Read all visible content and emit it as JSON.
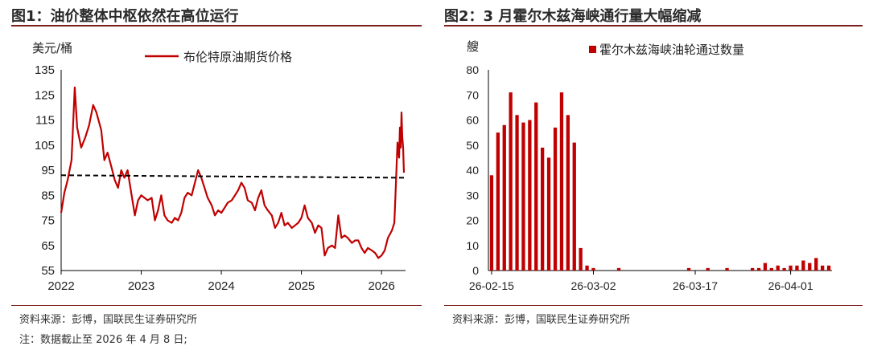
{
  "figure1": {
    "title": "图1：油价整体中枢依然在高位运行",
    "source": "资料来源：彭博，国联民生证券研究所",
    "note": "注：数据截止至 2026 年 4 月 8 日;",
    "chart_data": {
      "type": "line",
      "ylabel": "美元/桶",
      "ylim": [
        55,
        135
      ],
      "yticks": [
        55,
        65,
        75,
        85,
        95,
        105,
        115,
        125,
        135
      ],
      "xticks": [
        "2022",
        "2023",
        "2024",
        "2025",
        "2026"
      ],
      "xlim": [
        2022.0,
        2026.3
      ],
      "series": [
        {
          "name": "布伦特原油期货价格",
          "color": "#c00000",
          "points": [
            [
              2022.0,
              78
            ],
            [
              2022.04,
              86
            ],
            [
              2022.08,
              91
            ],
            [
              2022.13,
              99
            ],
            [
              2022.17,
              128
            ],
            [
              2022.2,
              112
            ],
            [
              2022.25,
              104
            ],
            [
              2022.3,
              108
            ],
            [
              2022.35,
              113
            ],
            [
              2022.4,
              121
            ],
            [
              2022.44,
              118
            ],
            [
              2022.5,
              111
            ],
            [
              2022.54,
              99
            ],
            [
              2022.58,
              102
            ],
            [
              2022.63,
              96
            ],
            [
              2022.67,
              91
            ],
            [
              2022.71,
              88
            ],
            [
              2022.75,
              95
            ],
            [
              2022.79,
              92
            ],
            [
              2022.83,
              95
            ],
            [
              2022.88,
              85
            ],
            [
              2022.92,
              77
            ],
            [
              2022.96,
              83
            ],
            [
              2023.0,
              85
            ],
            [
              2023.04,
              84
            ],
            [
              2023.08,
              83
            ],
            [
              2023.13,
              84
            ],
            [
              2023.17,
              75
            ],
            [
              2023.21,
              79
            ],
            [
              2023.25,
              85
            ],
            [
              2023.29,
              77
            ],
            [
              2023.33,
              75
            ],
            [
              2023.38,
              74
            ],
            [
              2023.42,
              76
            ],
            [
              2023.46,
              75
            ],
            [
              2023.5,
              78
            ],
            [
              2023.54,
              84
            ],
            [
              2023.58,
              86
            ],
            [
              2023.63,
              85
            ],
            [
              2023.67,
              90
            ],
            [
              2023.71,
              95
            ],
            [
              2023.75,
              92
            ],
            [
              2023.79,
              88
            ],
            [
              2023.83,
              84
            ],
            [
              2023.88,
              81
            ],
            [
              2023.92,
              77
            ],
            [
              2023.96,
              79
            ],
            [
              2024.0,
              78
            ],
            [
              2024.04,
              80
            ],
            [
              2024.08,
              82
            ],
            [
              2024.13,
              83
            ],
            [
              2024.17,
              85
            ],
            [
              2024.21,
              87
            ],
            [
              2024.25,
              90
            ],
            [
              2024.29,
              88
            ],
            [
              2024.33,
              83
            ],
            [
              2024.38,
              82
            ],
            [
              2024.42,
              79
            ],
            [
              2024.46,
              84
            ],
            [
              2024.5,
              87
            ],
            [
              2024.54,
              81
            ],
            [
              2024.58,
              79
            ],
            [
              2024.63,
              77
            ],
            [
              2024.67,
              72
            ],
            [
              2024.71,
              74
            ],
            [
              2024.75,
              78
            ],
            [
              2024.79,
              73
            ],
            [
              2024.83,
              74
            ],
            [
              2024.88,
              72
            ],
            [
              2024.92,
              73
            ],
            [
              2024.96,
              74
            ],
            [
              2025.0,
              76
            ],
            [
              2025.04,
              81
            ],
            [
              2025.08,
              76
            ],
            [
              2025.13,
              74
            ],
            [
              2025.17,
              70
            ],
            [
              2025.21,
              73
            ],
            [
              2025.25,
              72
            ],
            [
              2025.29,
              61
            ],
            [
              2025.33,
              64
            ],
            [
              2025.38,
              65
            ],
            [
              2025.42,
              64
            ],
            [
              2025.46,
              77
            ],
            [
              2025.5,
              68
            ],
            [
              2025.54,
              69
            ],
            [
              2025.58,
              68
            ],
            [
              2025.63,
              66
            ],
            [
              2025.67,
              67
            ],
            [
              2025.71,
              67
            ],
            [
              2025.75,
              64
            ],
            [
              2025.79,
              62
            ],
            [
              2025.83,
              64
            ],
            [
              2025.88,
              63
            ],
            [
              2025.92,
              62
            ],
            [
              2025.96,
              60
            ],
            [
              2026.0,
              61
            ],
            [
              2026.04,
              63
            ],
            [
              2026.08,
              68
            ],
            [
              2026.13,
              71
            ],
            [
              2026.16,
              74
            ],
            [
              2026.18,
              90
            ],
            [
              2026.2,
              106
            ],
            [
              2026.22,
              100
            ],
            [
              2026.23,
              112
            ],
            [
              2026.24,
              104
            ],
            [
              2026.25,
              118
            ],
            [
              2026.26,
              108
            ],
            [
              2026.27,
              104
            ],
            [
              2026.28,
              94
            ]
          ]
        },
        {
          "name": "",
          "style": "dashed",
          "color": "#000000",
          "points": [
            [
              2022.0,
              93.0
            ],
            [
              2026.28,
              92.0
            ]
          ]
        }
      ],
      "legend": "top"
    }
  },
  "figure2": {
    "title": "图2：3 月霍尔木兹海峡通行量大幅缩减",
    "source": "资料来源：彭博，国联民生证券研究所",
    "chart_data": {
      "type": "bar",
      "ylabel": "艘",
      "ylim": [
        0,
        80
      ],
      "yticks": [
        0,
        10,
        20,
        30,
        40,
        50,
        60,
        70,
        80
      ],
      "xticks": [
        {
          "index": 1,
          "label": "26-02-15"
        },
        {
          "index": 17,
          "label": "26-03-02"
        },
        {
          "index": 33,
          "label": "26-03-17"
        },
        {
          "index": 48,
          "label": "26-04-01"
        }
      ],
      "series": [
        {
          "name": "霍尔木兹海峡油轮通过数量",
          "color": "#c00000",
          "values": [
            38,
            55,
            58,
            71,
            62,
            59,
            60,
            67,
            49,
            45,
            57,
            71,
            62,
            51,
            9,
            2,
            1,
            0,
            0,
            0,
            1,
            0,
            0,
            0,
            0,
            0,
            0,
            0,
            0,
            0,
            0,
            1,
            0,
            0,
            1,
            0,
            0,
            1,
            0,
            0,
            0,
            1,
            1,
            3,
            1,
            2,
            1,
            2,
            2,
            4,
            3,
            5,
            2,
            2
          ]
        }
      ],
      "legend": "top"
    }
  }
}
